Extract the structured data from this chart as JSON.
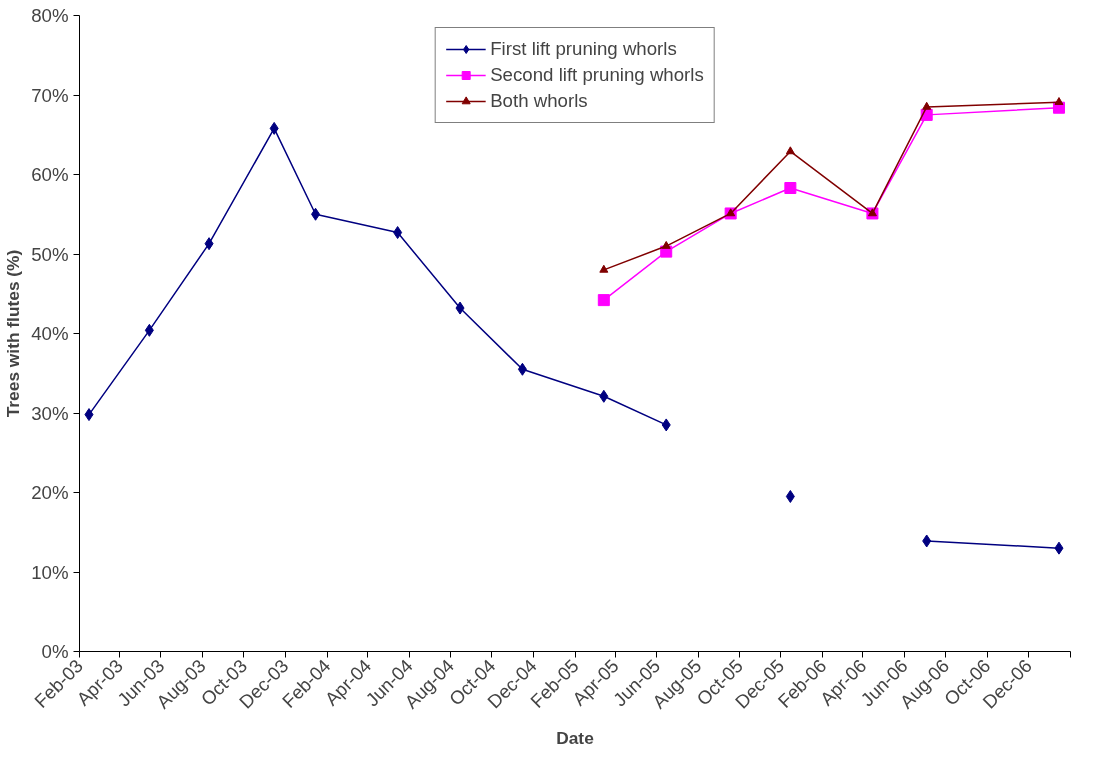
{
  "chart_data": {
    "type": "line",
    "xlabel": "Date",
    "ylabel": "Trees with flutes (%)",
    "x": [
      "2003-02-15",
      "2003-05-15",
      "2003-08-11",
      "2003-11-15",
      "2004-01-15",
      "2004-05-15",
      "2004-08-15",
      "2004-11-15",
      "2005-03-15",
      "2005-06-15",
      "2005-09-18",
      "2005-12-15",
      "2006-04-15",
      "2006-07-04",
      "2007-01-15"
    ],
    "series": [
      {
        "name": "First lift pruning whorls",
        "color": "#000080",
        "marker": "diamond",
        "values": [
          29.8,
          40.4,
          51.3,
          65.8,
          55.0,
          52.7,
          43.2,
          35.5,
          32.1,
          28.5,
          null,
          19.5,
          null,
          13.9,
          13.0
        ]
      },
      {
        "name": "Second lift pruning whorls",
        "color": "#ff00ff",
        "marker": "square",
        "values": [
          null,
          null,
          null,
          null,
          null,
          null,
          null,
          null,
          44.2,
          50.3,
          55.1,
          58.3,
          55.1,
          67.5,
          68.4
        ]
      },
      {
        "name": "Both whorls",
        "color": "#800000",
        "marker": "triangle",
        "values": [
          null,
          null,
          null,
          null,
          null,
          null,
          null,
          null,
          48.0,
          51.0,
          55.1,
          62.9,
          55.1,
          68.5,
          69.1
        ]
      }
    ],
    "xlim": [
      "2003-02",
      "2007-02"
    ],
    "xticks": [
      {
        "value": "2003-02",
        "label": "Feb-03"
      },
      {
        "value": "2003-04",
        "label": "Apr-03"
      },
      {
        "value": "2003-06",
        "label": "Jun-03"
      },
      {
        "value": "2003-08",
        "label": "Aug-03"
      },
      {
        "value": "2003-10",
        "label": "Oct-03"
      },
      {
        "value": "2003-12",
        "label": "Dec-03"
      },
      {
        "value": "2004-02",
        "label": "Feb-04"
      },
      {
        "value": "2004-04",
        "label": "Apr-04"
      },
      {
        "value": "2004-06",
        "label": "Jun-04"
      },
      {
        "value": "2004-08",
        "label": "Aug-04"
      },
      {
        "value": "2004-10",
        "label": "Oct-04"
      },
      {
        "value": "2004-12",
        "label": "Dec-04"
      },
      {
        "value": "2005-02",
        "label": "Feb-05"
      },
      {
        "value": "2005-04",
        "label": "Apr-05"
      },
      {
        "value": "2005-06",
        "label": "Jun-05"
      },
      {
        "value": "2005-08",
        "label": "Aug-05"
      },
      {
        "value": "2005-10",
        "label": "Oct-05"
      },
      {
        "value": "2005-12",
        "label": "Dec-05"
      },
      {
        "value": "2006-02",
        "label": "Feb-06"
      },
      {
        "value": "2006-04",
        "label": "Apr-06"
      },
      {
        "value": "2006-06",
        "label": "Jun-06"
      },
      {
        "value": "2006-08",
        "label": "Aug-06"
      },
      {
        "value": "2006-10",
        "label": "Oct-06"
      },
      {
        "value": "2006-12",
        "label": "Dec-06"
      },
      {
        "value": "2007-02",
        "label": null
      }
    ],
    "ylim": [
      0,
      80
    ],
    "yticks": [
      {
        "value": 0,
        "label": "0%"
      },
      {
        "value": 10,
        "label": "10%"
      },
      {
        "value": 20,
        "label": "20%"
      },
      {
        "value": 30,
        "label": "30%"
      },
      {
        "value": 40,
        "label": "40%"
      },
      {
        "value": 50,
        "label": "50%"
      },
      {
        "value": 60,
        "label": "60%"
      },
      {
        "value": 70,
        "label": "70%"
      },
      {
        "value": 80,
        "label": "80%"
      }
    ],
    "grid": false,
    "legend": "top",
    "line_style": "solid"
  }
}
